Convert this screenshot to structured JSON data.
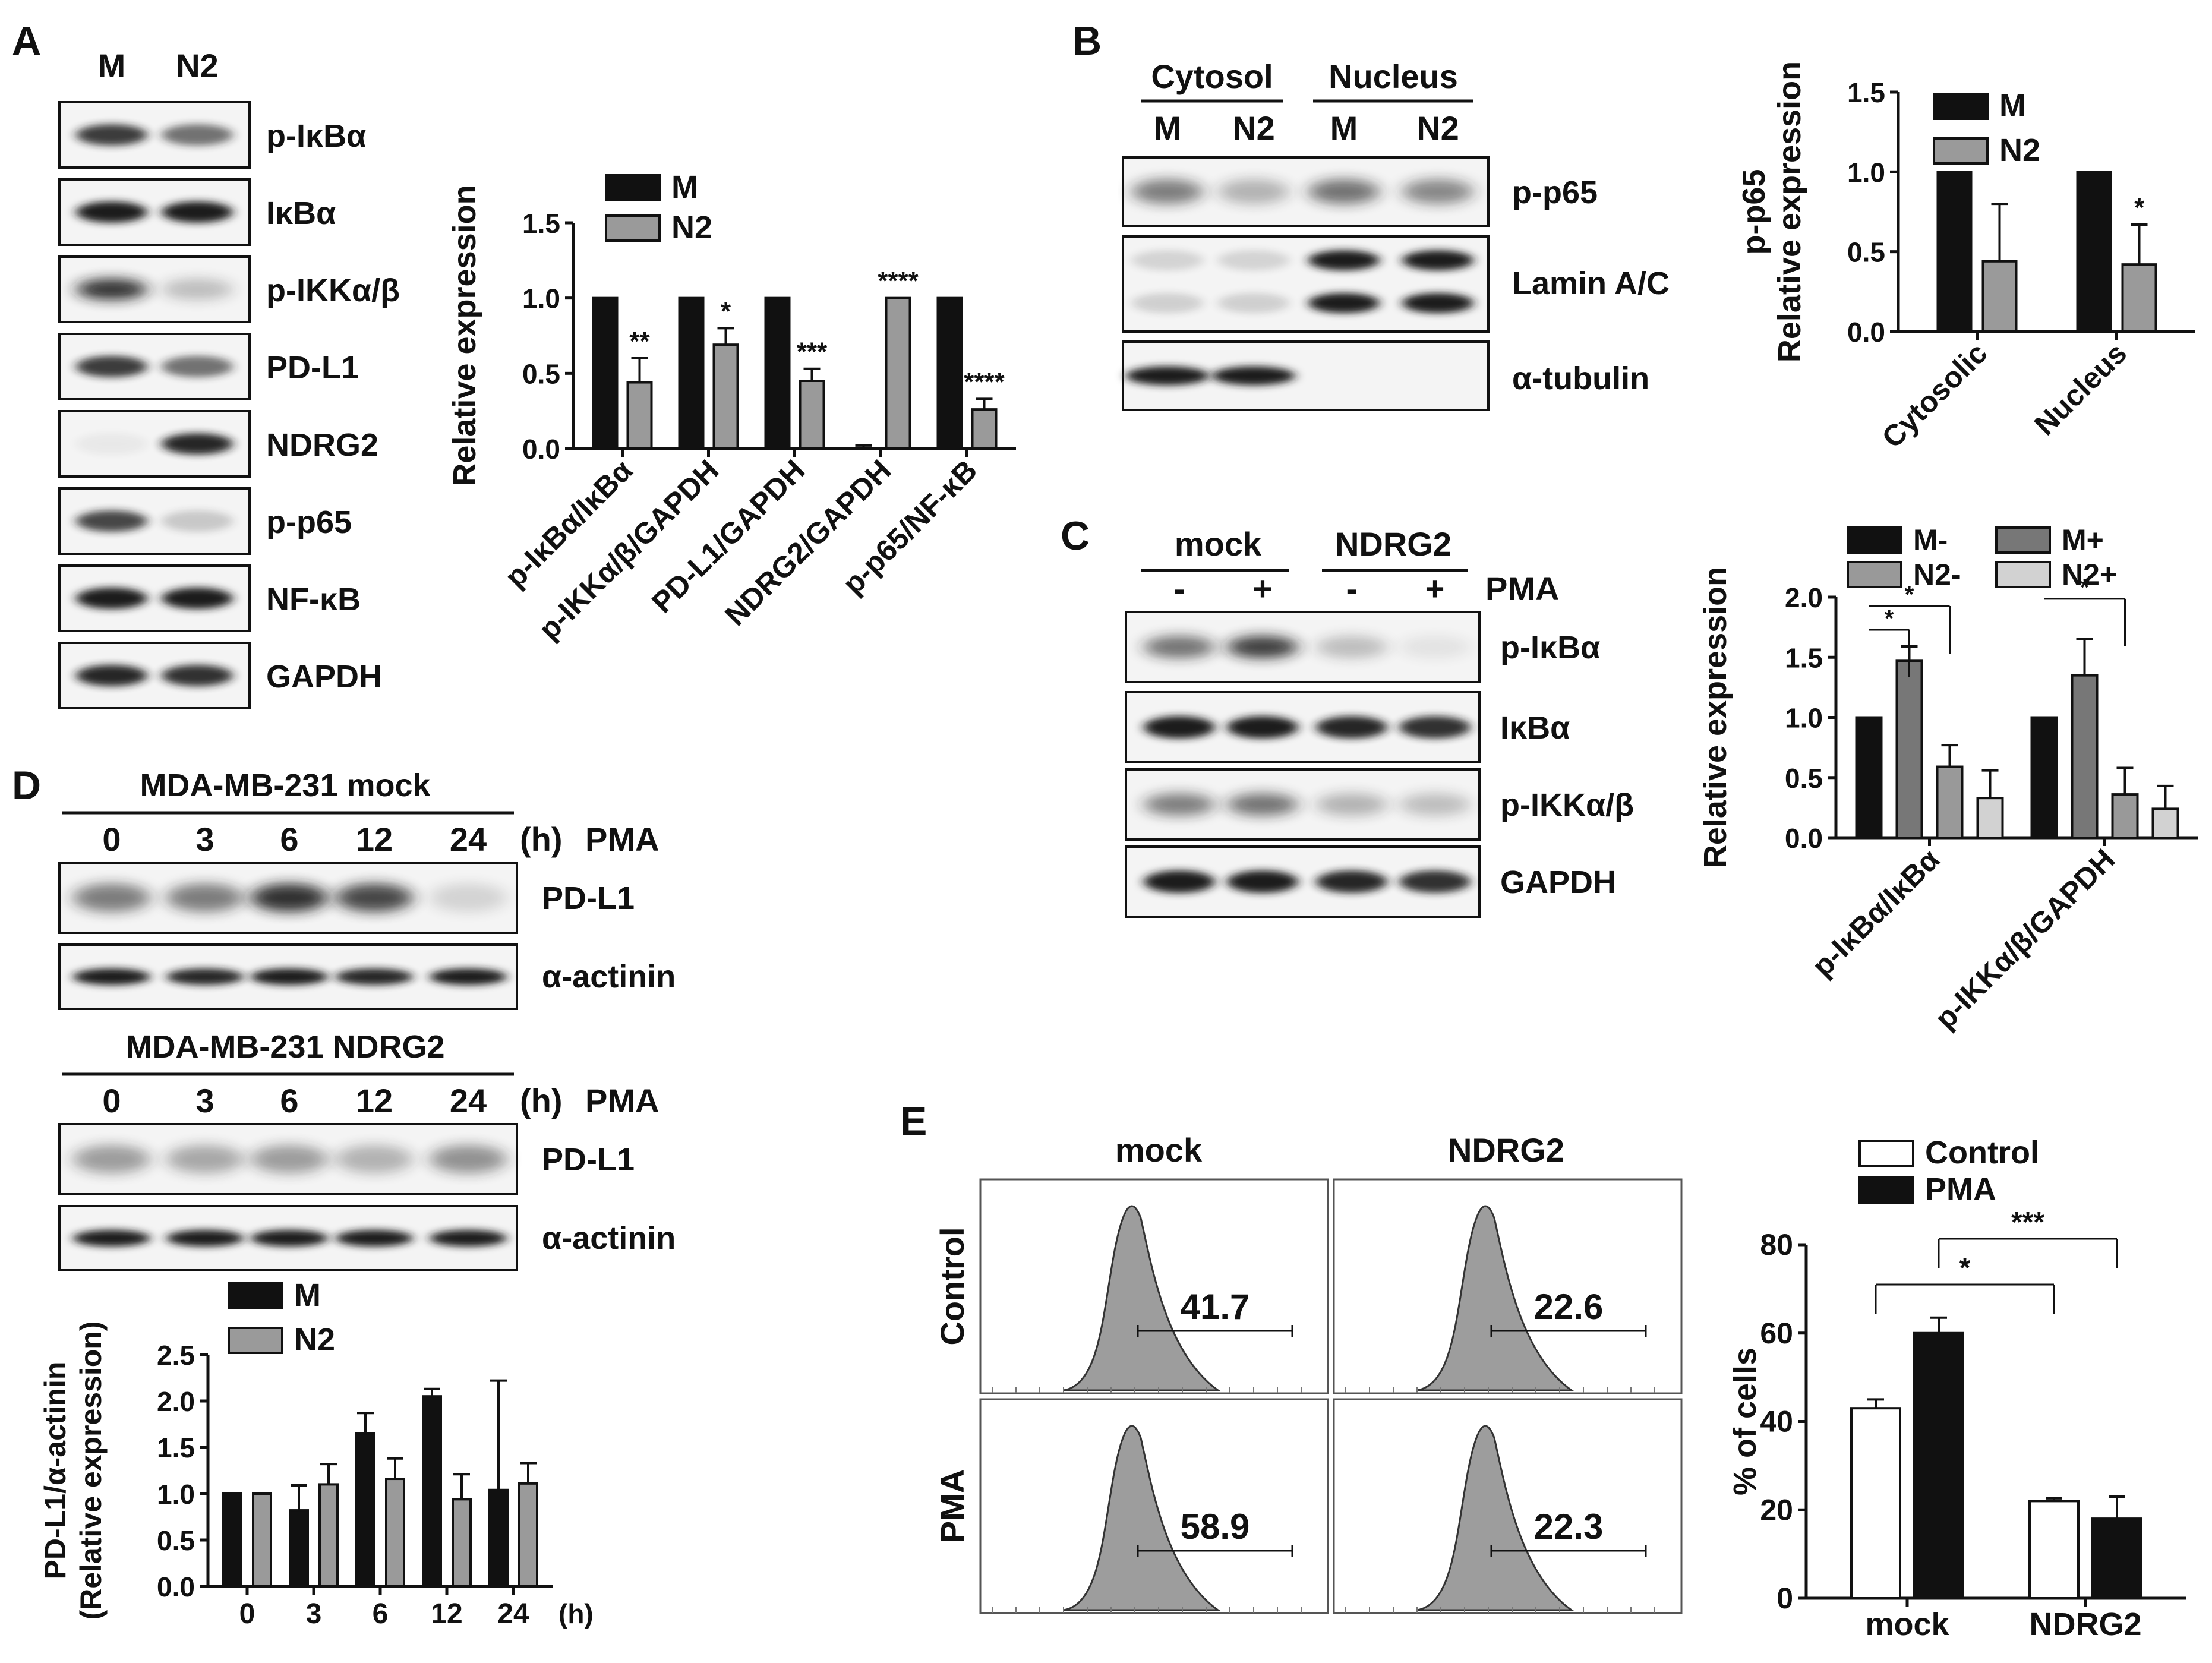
{
  "panels": {
    "A": {
      "letter": "A",
      "lanes": [
        "M",
        "N2"
      ],
      "blots": [
        "p-IκBα",
        "IκBα",
        "p-IKKα/β",
        "PD-L1",
        "NDRG2",
        "p-p65",
        "NF-κB",
        "GAPDH"
      ]
    },
    "B": {
      "letter": "B",
      "groups": [
        "Cytosol",
        "Nucleus"
      ],
      "lanes": [
        "M",
        "N2",
        "M",
        "N2"
      ],
      "blots": [
        "p-p65",
        "Lamin A/C",
        "α-tubulin"
      ]
    },
    "C": {
      "letter": "C",
      "groups": [
        "mock",
        "NDRG2"
      ],
      "pma_signs": [
        "-",
        "+",
        "-",
        "+"
      ],
      "pma_label": "PMA",
      "blots": [
        "p-IκBα",
        "IκBα",
        "p-IKKα/β",
        "GAPDH"
      ]
    },
    "D": {
      "letter": "D",
      "blocks": [
        {
          "title": "MDA-MB-231 mock",
          "times": [
            "0",
            "3",
            "6",
            "12",
            "24"
          ],
          "time_unit": "(h)",
          "pma_label": "PMA",
          "blots": [
            "PD-L1",
            "α-actinin"
          ]
        },
        {
          "title": "MDA-MB-231 NDRG2",
          "times": [
            "0",
            "3",
            "6",
            "12",
            "24"
          ],
          "time_unit": "(h)",
          "pma_label": "PMA",
          "blots": [
            "PD-L1",
            "α-actinin"
          ]
        }
      ]
    },
    "E": {
      "letter": "E",
      "columns": [
        "mock",
        "NDRG2"
      ],
      "rows": [
        "Control",
        "PMA"
      ],
      "gate_values": [
        "41.7",
        "22.6",
        "58.9",
        "22.3"
      ]
    }
  },
  "chart_data": [
    {
      "id": "A-bar",
      "type": "bar",
      "categories": [
        "p-IκBα/IκBα",
        "p-IKKα/β/GAPDH",
        "PD-L1/GAPDH",
        "NDRG2/GAPDH",
        "p-p65/NF-κB"
      ],
      "series": [
        {
          "name": "M",
          "values": [
            1.0,
            1.0,
            1.0,
            0.0,
            1.0
          ],
          "errors": [
            0,
            0,
            0,
            0.02,
            0
          ],
          "color": "#111111"
        },
        {
          "name": "N2",
          "values": [
            0.44,
            0.69,
            0.45,
            1.0,
            0.26
          ],
          "errors": [
            0.16,
            0.11,
            0.08,
            0,
            0.07
          ],
          "color": "#9a9a9a"
        }
      ],
      "annotations": [
        {
          "category": 0,
          "text": "**"
        },
        {
          "category": 1,
          "text": "*"
        },
        {
          "category": 2,
          "text": "***"
        },
        {
          "category": 3,
          "text": "****"
        },
        {
          "category": 4,
          "text": "****"
        }
      ],
      "ylabel": "Relative expression",
      "ylim": [
        0,
        1.5
      ],
      "yticks": [
        "0.0",
        "0.5",
        "1.0",
        "1.5"
      ],
      "legend": "top"
    },
    {
      "id": "B-bar",
      "type": "bar",
      "categories": [
        "Cytosolic",
        "Nucleus"
      ],
      "series": [
        {
          "name": "M",
          "values": [
            1.0,
            1.0
          ],
          "errors": [
            0,
            0
          ],
          "color": "#111111"
        },
        {
          "name": "N2",
          "values": [
            0.44,
            0.42
          ],
          "errors": [
            0.36,
            0.25
          ],
          "color": "#9a9a9a"
        }
      ],
      "annotations": [
        {
          "category": 1,
          "text": "*"
        }
      ],
      "ylabel": [
        "p-p65",
        "Relative expression"
      ],
      "ylim": [
        0,
        1.5
      ],
      "yticks": [
        "0.0",
        "0.5",
        "1.0",
        "1.5"
      ],
      "legend": "top-right"
    },
    {
      "id": "C-bar",
      "type": "bar",
      "categories": [
        "p-IκBα/IκBα",
        "p-IKKα/β/GAPDH"
      ],
      "series": [
        {
          "name": "M-",
          "values": [
            1.0,
            1.0
          ],
          "errors": [
            0,
            0
          ],
          "color": "#111111"
        },
        {
          "name": "M+",
          "values": [
            1.47,
            1.35
          ],
          "errors": [
            0.12,
            0.3
          ],
          "color": "#777777"
        },
        {
          "name": "N2-",
          "values": [
            0.59,
            0.36
          ],
          "errors": [
            0.18,
            0.22
          ],
          "color": "#999999"
        },
        {
          "name": "N2+",
          "values": [
            0.33,
            0.24
          ],
          "errors": [
            0.23,
            0.19
          ],
          "color": "#d2d2d2"
        }
      ],
      "significance": [
        {
          "category": 0,
          "from": 0,
          "to": 1,
          "text": "*"
        },
        {
          "category": 0,
          "from": 0,
          "to": 2,
          "text": "*"
        },
        {
          "category": 1,
          "from": 0,
          "to": 2,
          "text": "*"
        }
      ],
      "ylabel": "Relative expression",
      "ylim": [
        0,
        2.0
      ],
      "yticks": [
        "0.0",
        "0.5",
        "1.0",
        "1.5",
        "2.0"
      ],
      "legend": "top"
    },
    {
      "id": "D-bar",
      "type": "bar",
      "categories": [
        "0",
        "3",
        "6",
        "12",
        "24"
      ],
      "x_unit": "(h)",
      "series": [
        {
          "name": "M",
          "values": [
            1.0,
            0.82,
            1.65,
            2.05,
            1.04
          ],
          "errors": [
            0,
            0.27,
            0.22,
            0.08,
            1.18
          ],
          "color": "#111111"
        },
        {
          "name": "N2",
          "values": [
            1.0,
            1.1,
            1.16,
            0.94,
            1.11
          ],
          "errors": [
            0,
            0.22,
            0.22,
            0.27,
            0.22
          ],
          "color": "#9a9a9a"
        }
      ],
      "ylabel": [
        "PD-L1/α-actinin",
        "(Relative expression)"
      ],
      "ylim": [
        0,
        2.5
      ],
      "yticks": [
        "0.0",
        "0.5",
        "1.0",
        "1.5",
        "2.0",
        "2.5"
      ],
      "legend": "top"
    },
    {
      "id": "E-bar",
      "type": "bar",
      "categories": [
        "mock",
        "NDRG2"
      ],
      "series": [
        {
          "name": "Control",
          "values": [
            43,
            22
          ],
          "errors": [
            2,
            0.6
          ],
          "color": "#ffffff"
        },
        {
          "name": "PMA",
          "values": [
            60,
            18
          ],
          "errors": [
            3.5,
            5
          ],
          "color": "#111111"
        }
      ],
      "significance": [
        {
          "from": [
            0,
            0
          ],
          "to": [
            1,
            0
          ],
          "text": "*"
        },
        {
          "from": [
            0,
            1
          ],
          "to": [
            1,
            1
          ],
          "text": "***"
        }
      ],
      "ylabel": "% of cells",
      "ylim": [
        0,
        80
      ],
      "yticks": [
        "0",
        "20",
        "40",
        "60",
        "80"
      ],
      "legend": "top"
    }
  ],
  "colors": {
    "ink": "#111111",
    "band": "#1a1a1a",
    "histogram_fill": "#9d9d9d"
  }
}
